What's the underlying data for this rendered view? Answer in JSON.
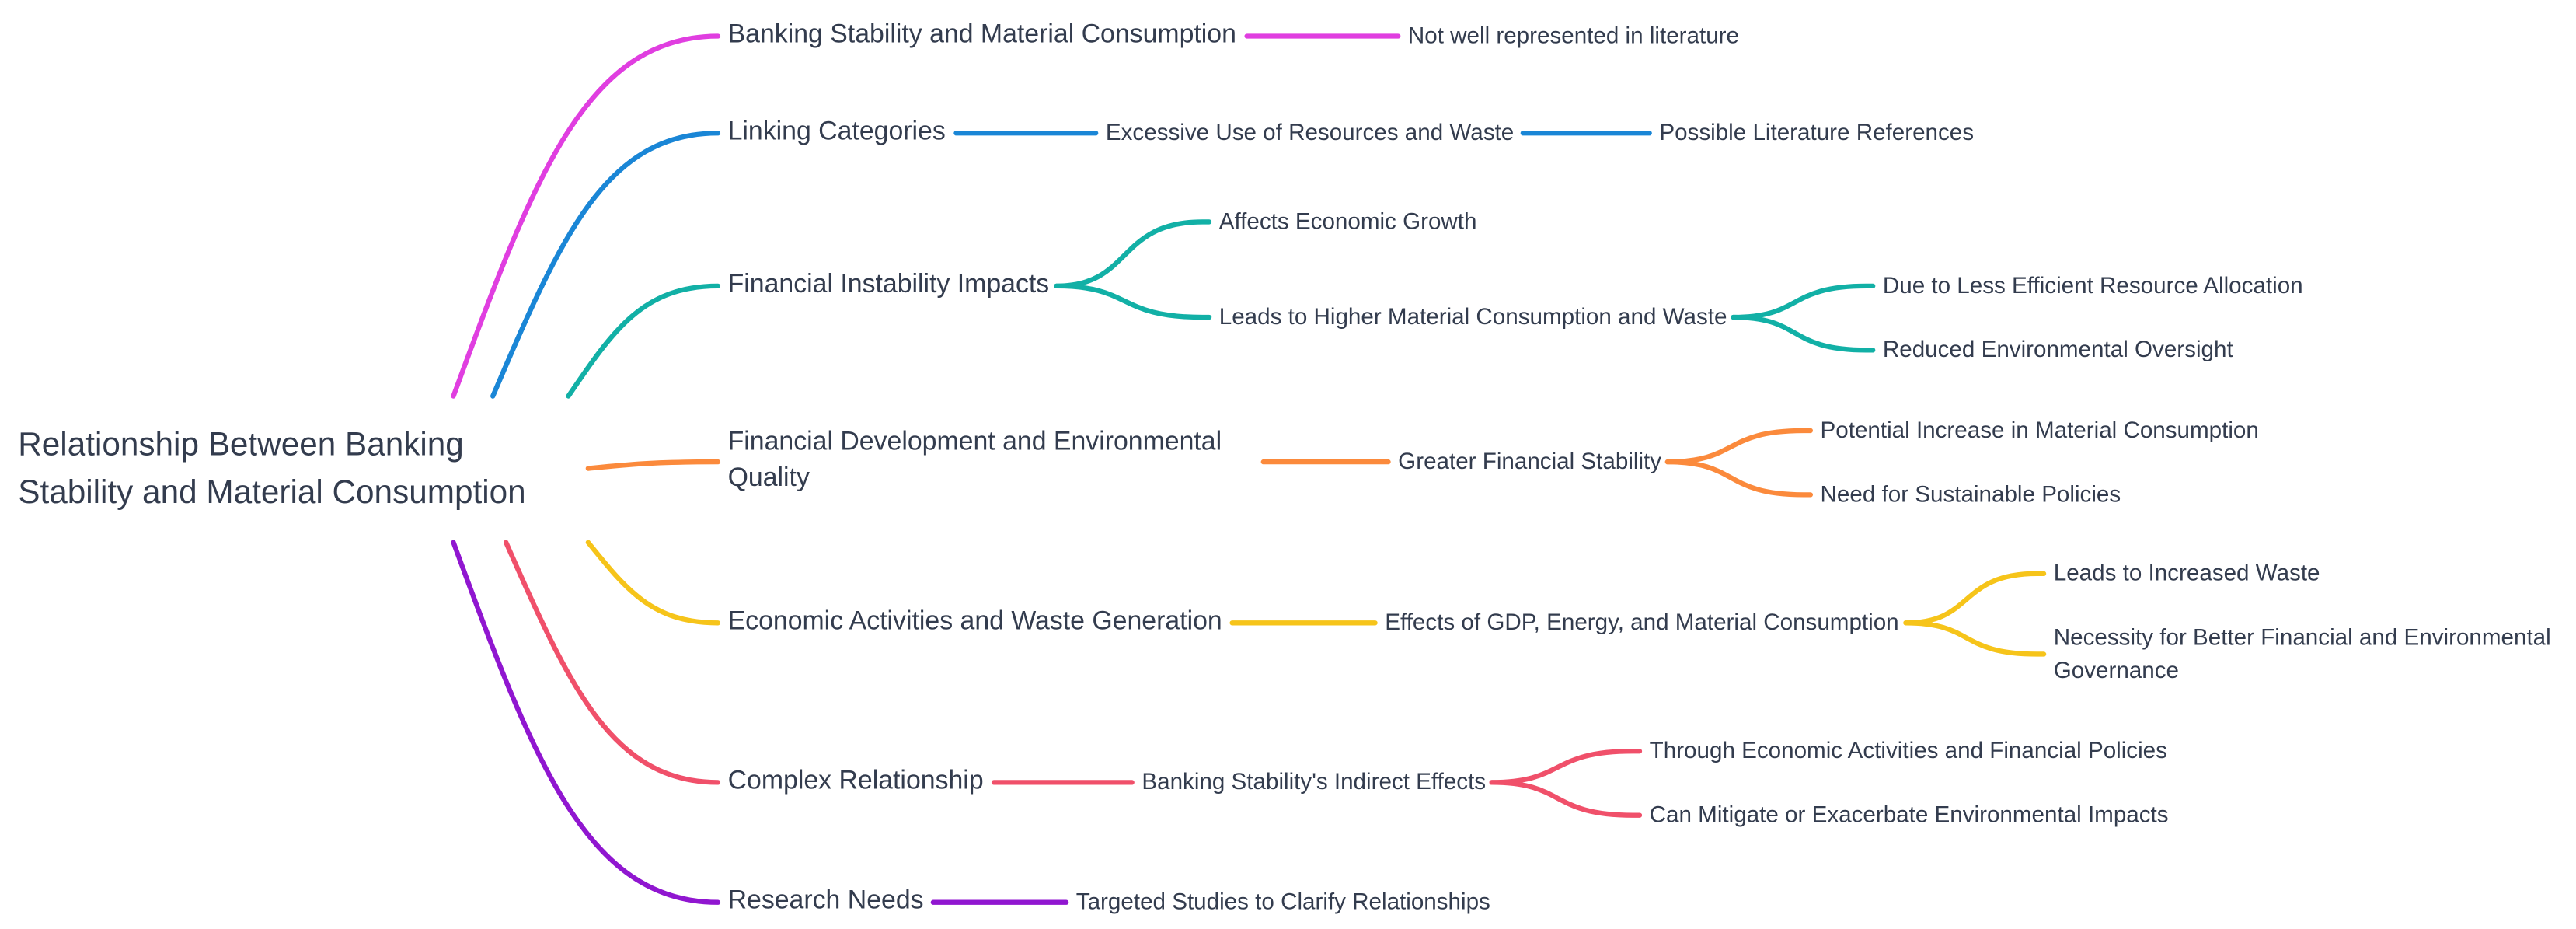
{
  "root": {
    "label": "Relationship Between Banking Stability and Material Consumption"
  },
  "branches": [
    {
      "label": "Banking Stability and Material Consumption",
      "children": [
        {
          "label": "Not well represented in literature",
          "children": []
        }
      ]
    },
    {
      "label": "Linking Categories",
      "children": [
        {
          "label": "Excessive Use of Resources and Waste",
          "children": [
            {
              "label": "Possible Literature References"
            }
          ]
        }
      ]
    },
    {
      "label": "Financial Instability Impacts",
      "children": [
        {
          "label": "Affects Economic Growth",
          "children": []
        },
        {
          "label": "Leads to Higher Material Consumption and Waste",
          "children": [
            {
              "label": "Due to Less Efficient Resource Allocation"
            },
            {
              "label": "Reduced Environmental Oversight"
            }
          ]
        }
      ]
    },
    {
      "label": "Financial Development and Environmental Quality",
      "children": [
        {
          "label": "Greater Financial Stability",
          "children": [
            {
              "label": "Potential Increase in Material Consumption"
            },
            {
              "label": "Need for Sustainable Policies"
            }
          ]
        }
      ]
    },
    {
      "label": "Economic Activities and Waste Generation",
      "children": [
        {
          "label": "Effects of GDP, Energy, and Material Consumption",
          "children": [
            {
              "label": "Leads to Increased Waste"
            },
            {
              "label": "Necessity for Better Financial and Environmental Governance"
            }
          ]
        }
      ]
    },
    {
      "label": "Complex Relationship",
      "children": [
        {
          "label": "Banking Stability's Indirect Effects",
          "children": [
            {
              "label": "Through Economic Activities and Financial Policies"
            },
            {
              "label": "Can Mitigate or Exacerbate Environmental Impacts"
            }
          ]
        }
      ]
    },
    {
      "label": "Research Needs",
      "children": [
        {
          "label": "Targeted Studies to Clarify Relationships",
          "children": []
        }
      ]
    }
  ]
}
